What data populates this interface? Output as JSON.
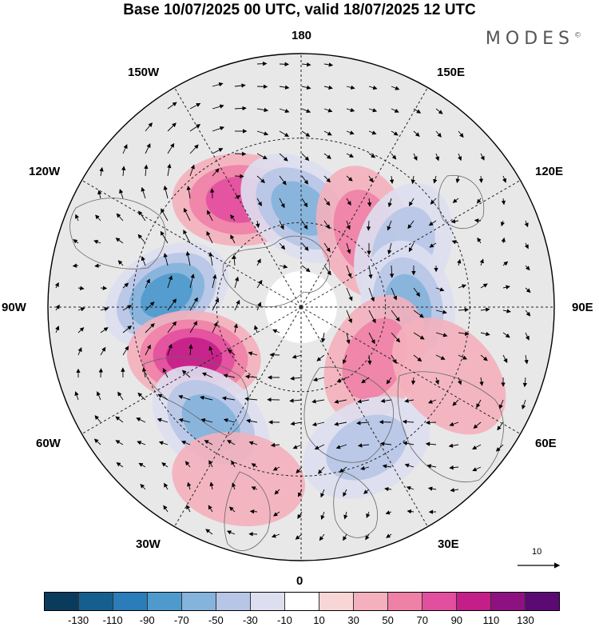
{
  "title": "Base 10/07/2025 00 UTC, valid 18/07/2025 12 UTC",
  "brand": "MODES",
  "brand_mark": "©",
  "longitude_labels": {
    "n180": "180",
    "e150": "150E",
    "e120": "120E",
    "e90": "90E",
    "e60": "60E",
    "e30": "30E",
    "n0": "0",
    "w30": "30W",
    "w60": "60W",
    "w90": "90W",
    "w120": "120W",
    "w150": "150W"
  },
  "reference_vector_label": "10",
  "colorbar": {
    "colors": [
      "#0b3b5c",
      "#155f8e",
      "#2a7db8",
      "#4f9acc",
      "#84b3dc",
      "#b7c5e6",
      "#dddff0",
      "#ffffff",
      "#f9d6d6",
      "#f4b0bc",
      "#f081a6",
      "#e24f9e",
      "#c41e88",
      "#8e1181",
      "#5a0a72"
    ],
    "ticks": [
      "-130",
      "-110",
      "-90",
      "-70",
      "-50",
      "-30",
      "-10",
      "10",
      "30",
      "50",
      "70",
      "90",
      "110",
      "130"
    ]
  },
  "anomaly_centers": [
    {
      "lon": -150,
      "lat": 46,
      "value": 75
    },
    {
      "lon": 180,
      "lat": 55,
      "value": -60
    },
    {
      "lon": 140,
      "lat": 55,
      "value": 55
    },
    {
      "lon": 120,
      "lat": 48,
      "value": -55
    },
    {
      "lon": -95,
      "lat": 42,
      "value": -85
    },
    {
      "lon": -65,
      "lat": 48,
      "value": 90
    },
    {
      "lon": -38,
      "lat": 38,
      "value": -65
    },
    {
      "lon": 90,
      "lat": 52,
      "value": -60
    },
    {
      "lon": 55,
      "lat": 58,
      "value": 40
    },
    {
      "lon": 25,
      "lat": 35,
      "value": -45
    },
    {
      "lon": -20,
      "lat": 25,
      "value": 25
    },
    {
      "lon": 65,
      "lat": 32,
      "value": 25
    }
  ]
}
